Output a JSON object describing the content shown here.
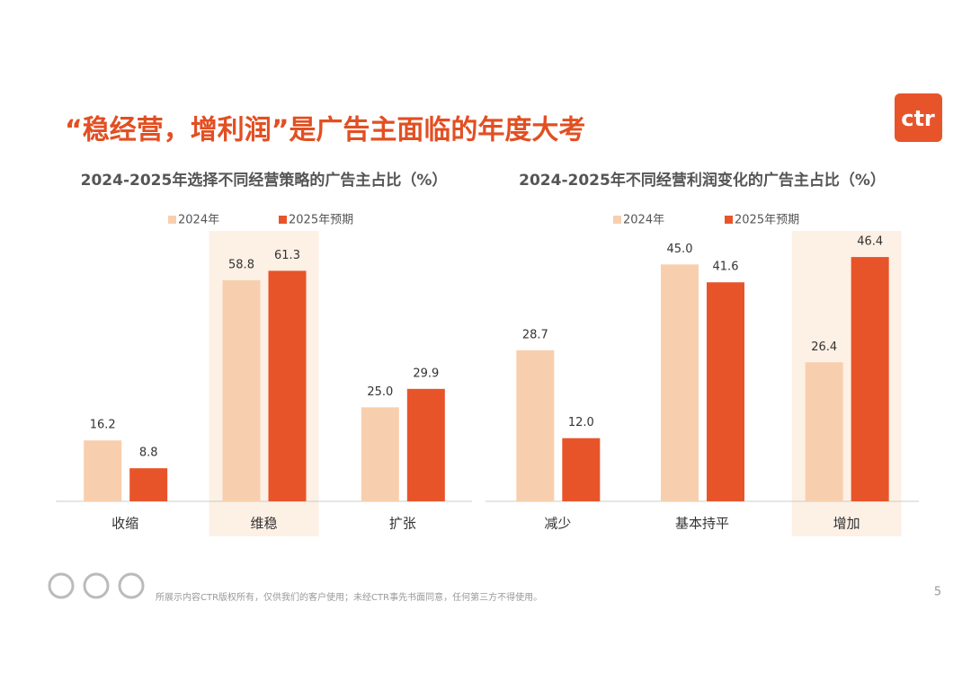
{
  "title": "“稳经营，增利润”是广告主面临的年度大考",
  "logo": "ctr",
  "footer": "所展示内容CTR版权所有，仅供我们的客户使用；未经CTR事先书面同意，任何第三方不得使用。",
  "page_number": 5,
  "chart_data": [
    {
      "type": "bar",
      "title": "2024-2025年选择不同经营策略的广告主占比（%）",
      "categories": [
        "收缩",
        "维稳",
        "扩张"
      ],
      "series": [
        {
          "name": "2024年",
          "color": "#f8cfae",
          "values": [
            16.2,
            58.8,
            25.0
          ],
          "value_labels": [
            "16.2",
            "58.8",
            "25.0"
          ]
        },
        {
          "name": "2025年预期",
          "color": "#e8542a",
          "values": [
            8.8,
            61.3,
            29.9
          ],
          "value_labels": [
            "8.8",
            "61.3",
            "29.9"
          ]
        }
      ],
      "ylim": [
        0,
        70
      ],
      "highlight": 1
    },
    {
      "type": "bar",
      "title": "2024-2025年不同经营利润变化的广告主占比（%）",
      "categories": [
        "减少",
        "基本持平",
        "增加"
      ],
      "series": [
        {
          "name": "2024年",
          "color": "#f8cfae",
          "values": [
            28.7,
            45.0,
            26.4
          ],
          "value_labels": [
            "28.7",
            "45.0",
            "26.4"
          ]
        },
        {
          "name": "2025年预期",
          "color": "#e8542a",
          "values": [
            12.0,
            41.6,
            46.4
          ],
          "value_labels": [
            "12.0",
            "41.6",
            "46.4"
          ]
        }
      ],
      "ylim": [
        0,
        50
      ],
      "highlight": 2
    }
  ]
}
